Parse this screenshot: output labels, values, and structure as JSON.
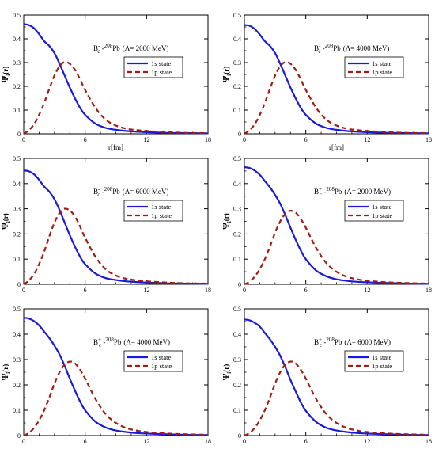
{
  "figure": {
    "colors": {
      "s1": "#1a1adf",
      "p1": "#a11d12",
      "frame": "#000000"
    }
  },
  "chart_data": [
    {
      "type": "line",
      "annotation": {
        "particle": "B",
        "sup": "-",
        "sub": "c",
        "nucleus_mass": "208",
        "nucleus": "Pb",
        "lambda": "(Λ= 2000 MeV)"
      },
      "ylabel": "Ψ",
      "ylabel_sub": "i",
      "ylabel_tail": "(r)",
      "xlabel": "r[fm]",
      "xlim": [
        0,
        18
      ],
      "ylim": [
        0,
        0.5
      ],
      "xticks": [
        0,
        6,
        12,
        18
      ],
      "yticks": [
        0,
        0.1,
        0.2,
        0.3,
        0.4,
        0.5
      ],
      "legend_position": "upper-right",
      "series": [
        {
          "name": "1s state",
          "style": "solid",
          "color": "#1a1adf",
          "x": [
            0,
            0.5,
            1,
            1.5,
            2,
            2.5,
            3,
            3.5,
            4,
            4.5,
            5,
            5.5,
            6,
            7,
            8,
            9,
            10,
            11,
            12,
            14,
            16,
            18
          ],
          "y": [
            0.462,
            0.458,
            0.445,
            0.42,
            0.39,
            0.37,
            0.34,
            0.295,
            0.245,
            0.195,
            0.15,
            0.11,
            0.08,
            0.043,
            0.025,
            0.017,
            0.012,
            0.009,
            0.007,
            0.004,
            0.003,
            0.002
          ]
        },
        {
          "name": "1p state",
          "style": "dashed",
          "color": "#a11d12",
          "x": [
            0,
            0.5,
            1,
            1.5,
            2,
            2.5,
            3,
            3.5,
            4,
            4.5,
            5,
            5.5,
            6,
            7,
            8,
            9,
            10,
            11,
            12,
            14,
            16,
            18
          ],
          "y": [
            0.0,
            0.015,
            0.04,
            0.08,
            0.13,
            0.19,
            0.245,
            0.285,
            0.302,
            0.295,
            0.27,
            0.23,
            0.185,
            0.11,
            0.06,
            0.035,
            0.022,
            0.016,
            0.012,
            0.007,
            0.004,
            0.003
          ]
        }
      ]
    },
    {
      "type": "line",
      "annotation": {
        "particle": "B",
        "sup": "-",
        "sub": "c",
        "nucleus_mass": "208",
        "nucleus": "Pb",
        "lambda": "(Λ= 4000 MeV)"
      },
      "ylabel": "Ψ",
      "ylabel_sub": "i",
      "ylabel_tail": "(r)",
      "xlabel": "r[fm]",
      "xlim": [
        0,
        18
      ],
      "ylim": [
        0,
        0.5
      ],
      "xticks": [
        0,
        6,
        12,
        18
      ],
      "yticks": [
        0,
        0.1,
        0.2,
        0.3,
        0.4,
        0.5
      ],
      "legend_position": "upper-right",
      "series": [
        {
          "name": "1s state",
          "style": "solid",
          "color": "#1a1adf",
          "x": [
            0,
            0.5,
            1,
            1.5,
            2,
            2.5,
            3,
            3.5,
            4,
            4.5,
            5,
            5.5,
            6,
            7,
            8,
            9,
            10,
            11,
            12,
            14,
            16,
            18
          ],
          "y": [
            0.458,
            0.455,
            0.442,
            0.418,
            0.39,
            0.37,
            0.34,
            0.295,
            0.245,
            0.195,
            0.15,
            0.11,
            0.08,
            0.043,
            0.025,
            0.017,
            0.012,
            0.009,
            0.007,
            0.004,
            0.003,
            0.002
          ]
        },
        {
          "name": "1p state",
          "style": "dashed",
          "color": "#a11d12",
          "x": [
            0,
            0.5,
            1,
            1.5,
            2,
            2.5,
            3,
            3.5,
            4,
            4.5,
            5,
            5.5,
            6,
            7,
            8,
            9,
            10,
            11,
            12,
            14,
            16,
            18
          ],
          "y": [
            0.0,
            0.015,
            0.04,
            0.08,
            0.13,
            0.19,
            0.245,
            0.285,
            0.302,
            0.295,
            0.27,
            0.23,
            0.185,
            0.11,
            0.06,
            0.035,
            0.022,
            0.016,
            0.012,
            0.007,
            0.004,
            0.003
          ]
        }
      ]
    },
    {
      "type": "line",
      "annotation": {
        "particle": "B",
        "sup": "-",
        "sub": "c",
        "nucleus_mass": "208",
        "nucleus": "Pb",
        "lambda": "(Λ= 6000 MeV)"
      },
      "ylabel": "Ψ",
      "ylabel_sub": "i",
      "ylabel_tail": "(r)",
      "xlabel": "",
      "xlim": [
        0,
        18
      ],
      "ylim": [
        0,
        0.5
      ],
      "xticks": [
        0,
        6,
        12,
        18
      ],
      "yticks": [
        0,
        0.1,
        0.2,
        0.3,
        0.4,
        0.5
      ],
      "legend_position": "upper-right",
      "series": [
        {
          "name": "1s state",
          "style": "solid",
          "color": "#1a1adf",
          "x": [
            0,
            0.5,
            1,
            1.5,
            2,
            2.5,
            3,
            3.5,
            4,
            4.5,
            5,
            5.5,
            6,
            7,
            8,
            9,
            10,
            11,
            12,
            14,
            16,
            18
          ],
          "y": [
            0.452,
            0.449,
            0.437,
            0.415,
            0.388,
            0.368,
            0.338,
            0.295,
            0.245,
            0.195,
            0.15,
            0.11,
            0.08,
            0.043,
            0.025,
            0.017,
            0.012,
            0.009,
            0.007,
            0.004,
            0.003,
            0.002
          ]
        },
        {
          "name": "1p state",
          "style": "dashed",
          "color": "#a11d12",
          "x": [
            0,
            0.5,
            1,
            1.5,
            2,
            2.5,
            3,
            3.5,
            4,
            4.5,
            5,
            5.5,
            6,
            7,
            8,
            9,
            10,
            11,
            12,
            14,
            16,
            18
          ],
          "y": [
            0.0,
            0.015,
            0.04,
            0.08,
            0.13,
            0.19,
            0.245,
            0.283,
            0.3,
            0.293,
            0.27,
            0.23,
            0.185,
            0.11,
            0.06,
            0.035,
            0.022,
            0.016,
            0.012,
            0.007,
            0.004,
            0.003
          ]
        }
      ]
    },
    {
      "type": "line",
      "annotation": {
        "particle": "B",
        "sup": "+",
        "sub": "c",
        "nucleus_mass": "208",
        "nucleus": "Pb",
        "lambda": "(Λ= 2000 MeV)"
      },
      "ylabel": "Ψ",
      "ylabel_sub": "i",
      "ylabel_tail": "(r)",
      "xlabel": "",
      "xlim": [
        0,
        18
      ],
      "ylim": [
        0,
        0.5
      ],
      "xticks": [
        0,
        6,
        12,
        18
      ],
      "yticks": [
        0,
        0.1,
        0.2,
        0.3,
        0.4,
        0.5
      ],
      "legend_position": "upper-right",
      "series": [
        {
          "name": "1s state",
          "style": "solid",
          "color": "#1a1adf",
          "x": [
            0,
            0.5,
            1,
            1.5,
            2,
            2.5,
            3,
            3.5,
            4,
            4.5,
            5,
            5.5,
            6,
            7,
            8,
            9,
            10,
            11,
            12,
            14,
            16,
            18
          ],
          "y": [
            0.465,
            0.462,
            0.452,
            0.435,
            0.41,
            0.385,
            0.355,
            0.32,
            0.275,
            0.225,
            0.178,
            0.135,
            0.1,
            0.055,
            0.032,
            0.02,
            0.014,
            0.01,
            0.008,
            0.005,
            0.003,
            0.002
          ]
        },
        {
          "name": "1p state",
          "style": "dashed",
          "color": "#a11d12",
          "x": [
            0,
            0.5,
            1,
            1.5,
            2,
            2.5,
            3,
            3.5,
            4,
            4.5,
            5,
            5.5,
            6,
            7,
            8,
            9,
            10,
            11,
            12,
            14,
            16,
            18
          ],
          "y": [
            0.0,
            0.01,
            0.03,
            0.06,
            0.1,
            0.15,
            0.205,
            0.25,
            0.28,
            0.292,
            0.285,
            0.26,
            0.225,
            0.145,
            0.085,
            0.05,
            0.03,
            0.02,
            0.014,
            0.008,
            0.005,
            0.003
          ]
        }
      ]
    },
    {
      "type": "line",
      "annotation": {
        "particle": "B",
        "sup": "+",
        "sub": "c",
        "nucleus_mass": "208",
        "nucleus": "Pb",
        "lambda": "(Λ= 4000 MeV)"
      },
      "ylabel": "Ψ",
      "ylabel_sub": "i",
      "ylabel_tail": "(r)",
      "xlabel": "",
      "xlim": [
        0,
        18
      ],
      "ylim": [
        0,
        0.5
      ],
      "xticks": [
        0,
        6,
        12,
        18
      ],
      "yticks": [
        0,
        0.1,
        0.2,
        0.3,
        0.4,
        0.5
      ],
      "legend_position": "upper-right",
      "series": [
        {
          "name": "1s state",
          "style": "solid",
          "color": "#1a1adf",
          "x": [
            0,
            0.5,
            1,
            1.5,
            2,
            2.5,
            3,
            3.5,
            4,
            4.5,
            5,
            5.5,
            6,
            7,
            8,
            9,
            10,
            11,
            12,
            14,
            16,
            18
          ],
          "y": [
            0.465,
            0.462,
            0.452,
            0.435,
            0.41,
            0.385,
            0.355,
            0.32,
            0.275,
            0.225,
            0.178,
            0.135,
            0.1,
            0.055,
            0.032,
            0.02,
            0.014,
            0.01,
            0.008,
            0.005,
            0.003,
            0.002
          ]
        },
        {
          "name": "1p state",
          "style": "dashed",
          "color": "#a11d12",
          "x": [
            0,
            0.5,
            1,
            1.5,
            2,
            2.5,
            3,
            3.5,
            4,
            4.5,
            5,
            5.5,
            6,
            7,
            8,
            9,
            10,
            11,
            12,
            14,
            16,
            18
          ],
          "y": [
            0.0,
            0.01,
            0.03,
            0.06,
            0.1,
            0.15,
            0.205,
            0.25,
            0.28,
            0.292,
            0.285,
            0.26,
            0.225,
            0.145,
            0.085,
            0.05,
            0.03,
            0.02,
            0.014,
            0.008,
            0.005,
            0.003
          ]
        }
      ]
    },
    {
      "type": "line",
      "annotation": {
        "particle": "B",
        "sup": "+",
        "sub": "c",
        "nucleus_mass": "208",
        "nucleus": "Pb",
        "lambda": "(Λ= 6000 MeV)"
      },
      "ylabel": "Ψ",
      "ylabel_sub": "i",
      "ylabel_tail": "(r)",
      "xlabel": "",
      "xlim": [
        0,
        18
      ],
      "ylim": [
        0,
        0.5
      ],
      "xticks": [
        0,
        6,
        12,
        18
      ],
      "yticks": [
        0,
        0.1,
        0.2,
        0.3,
        0.4,
        0.5
      ],
      "legend_position": "upper-right",
      "series": [
        {
          "name": "1s state",
          "style": "solid",
          "color": "#1a1adf",
          "x": [
            0,
            0.5,
            1,
            1.5,
            2,
            2.5,
            3,
            3.5,
            4,
            4.5,
            5,
            5.5,
            6,
            7,
            8,
            9,
            10,
            11,
            12,
            14,
            16,
            18
          ],
          "y": [
            0.458,
            0.455,
            0.445,
            0.43,
            0.405,
            0.38,
            0.35,
            0.315,
            0.27,
            0.22,
            0.175,
            0.132,
            0.098,
            0.054,
            0.031,
            0.02,
            0.014,
            0.01,
            0.008,
            0.005,
            0.003,
            0.002
          ]
        },
        {
          "name": "1p state",
          "style": "dashed",
          "color": "#a11d12",
          "x": [
            0,
            0.5,
            1,
            1.5,
            2,
            2.5,
            3,
            3.5,
            4,
            4.5,
            5,
            5.5,
            6,
            7,
            8,
            9,
            10,
            11,
            12,
            14,
            16,
            18
          ],
          "y": [
            0.0,
            0.01,
            0.03,
            0.06,
            0.1,
            0.15,
            0.205,
            0.25,
            0.28,
            0.292,
            0.285,
            0.26,
            0.225,
            0.145,
            0.085,
            0.05,
            0.03,
            0.02,
            0.014,
            0.008,
            0.005,
            0.003
          ]
        }
      ]
    }
  ]
}
